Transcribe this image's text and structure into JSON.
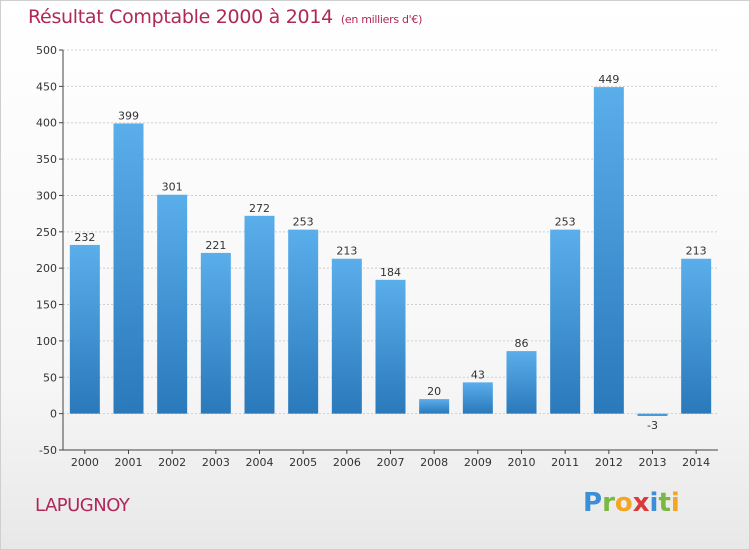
{
  "header": {
    "title": "Résultat Comptable 2000 à 2014",
    "subtitle": "(en milliers d'€)"
  },
  "footer": {
    "commune": "LAPUGNOY",
    "logo_text": "Proxiti",
    "logo_letters": [
      {
        "char": "P",
        "color": "#3a8fd6"
      },
      {
        "char": "r",
        "color": "#7ab843"
      },
      {
        "char": "o",
        "color": "#f2a623"
      },
      {
        "char": "x",
        "color": "#d93a3a"
      },
      {
        "char": "i",
        "color": "#3a8fd6"
      },
      {
        "char": "t",
        "color": "#7ab843"
      },
      {
        "char": "i",
        "color": "#f2a623"
      }
    ]
  },
  "colors": {
    "title": "#b0275a",
    "bar_light": "#5aaeea",
    "bar_dark": "#2a79bb",
    "grid": "#cfcfcf",
    "axis": "#444444",
    "text": "#333333"
  },
  "chart_data": {
    "type": "bar",
    "title": "Résultat Comptable 2000 à 2014",
    "subtitle": "(en milliers d'€)",
    "categories": [
      "2000",
      "2001",
      "2002",
      "2003",
      "2004",
      "2005",
      "2006",
      "2007",
      "2008",
      "2009",
      "2010",
      "2011",
      "2012",
      "2013",
      "2014"
    ],
    "values": [
      232,
      399,
      301,
      221,
      272,
      253,
      213,
      184,
      20,
      43,
      86,
      253,
      449,
      -3,
      213
    ],
    "data_labels": [
      "232",
      "399",
      "301",
      "221",
      "272",
      "253",
      "213",
      "184",
      "20",
      "43",
      "86",
      "253",
      "449",
      "-3",
      "213"
    ],
    "ylim": [
      -50,
      500
    ],
    "yticks": [
      -50,
      0,
      50,
      100,
      150,
      200,
      250,
      300,
      350,
      400,
      450,
      500
    ],
    "ytick_labels": [
      "-50",
      "0",
      "50",
      "100",
      "150",
      "200",
      "250",
      "300",
      "350",
      "400",
      "450",
      "500"
    ],
    "grid": true,
    "legend": false,
    "xlabel": "",
    "ylabel": ""
  }
}
